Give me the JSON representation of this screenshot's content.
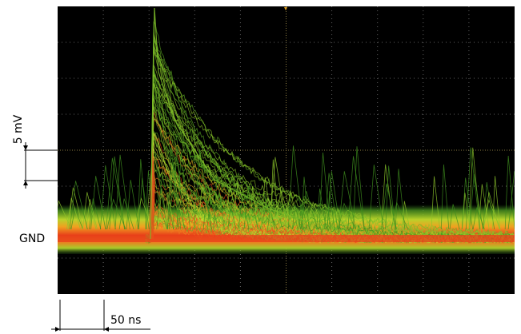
{
  "annotations": {
    "vertical_scale": "5 mV",
    "ground": "GND",
    "horizontal_scale": "50 ns"
  }
}
